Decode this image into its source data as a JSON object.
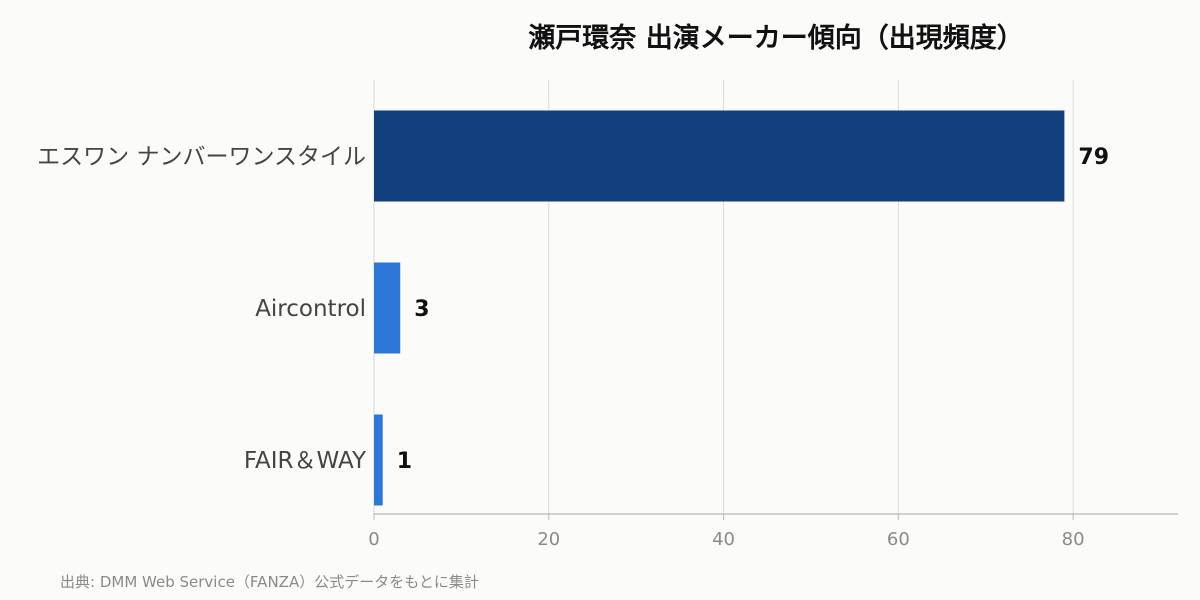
{
  "chart_data": {
    "type": "bar",
    "orientation": "horizontal",
    "title": "瀬戸環奈 出演メーカー傾向（出現頻度）",
    "categories": [
      "エスワン ナンバーワンスタイル",
      "Aircontrol",
      "FAIR＆WAY"
    ],
    "values": [
      79,
      3,
      1
    ],
    "bar_colors": [
      "#123f7e",
      "#2b78d6",
      "#2b78d6"
    ],
    "xlim": [
      0,
      92
    ],
    "x_ticks": [
      0,
      20,
      40,
      60,
      80
    ],
    "grid": true,
    "xlabel": "",
    "ylabel": ""
  },
  "source": "出典: DMM Web Service（FANZA）公式データをもとに集計"
}
